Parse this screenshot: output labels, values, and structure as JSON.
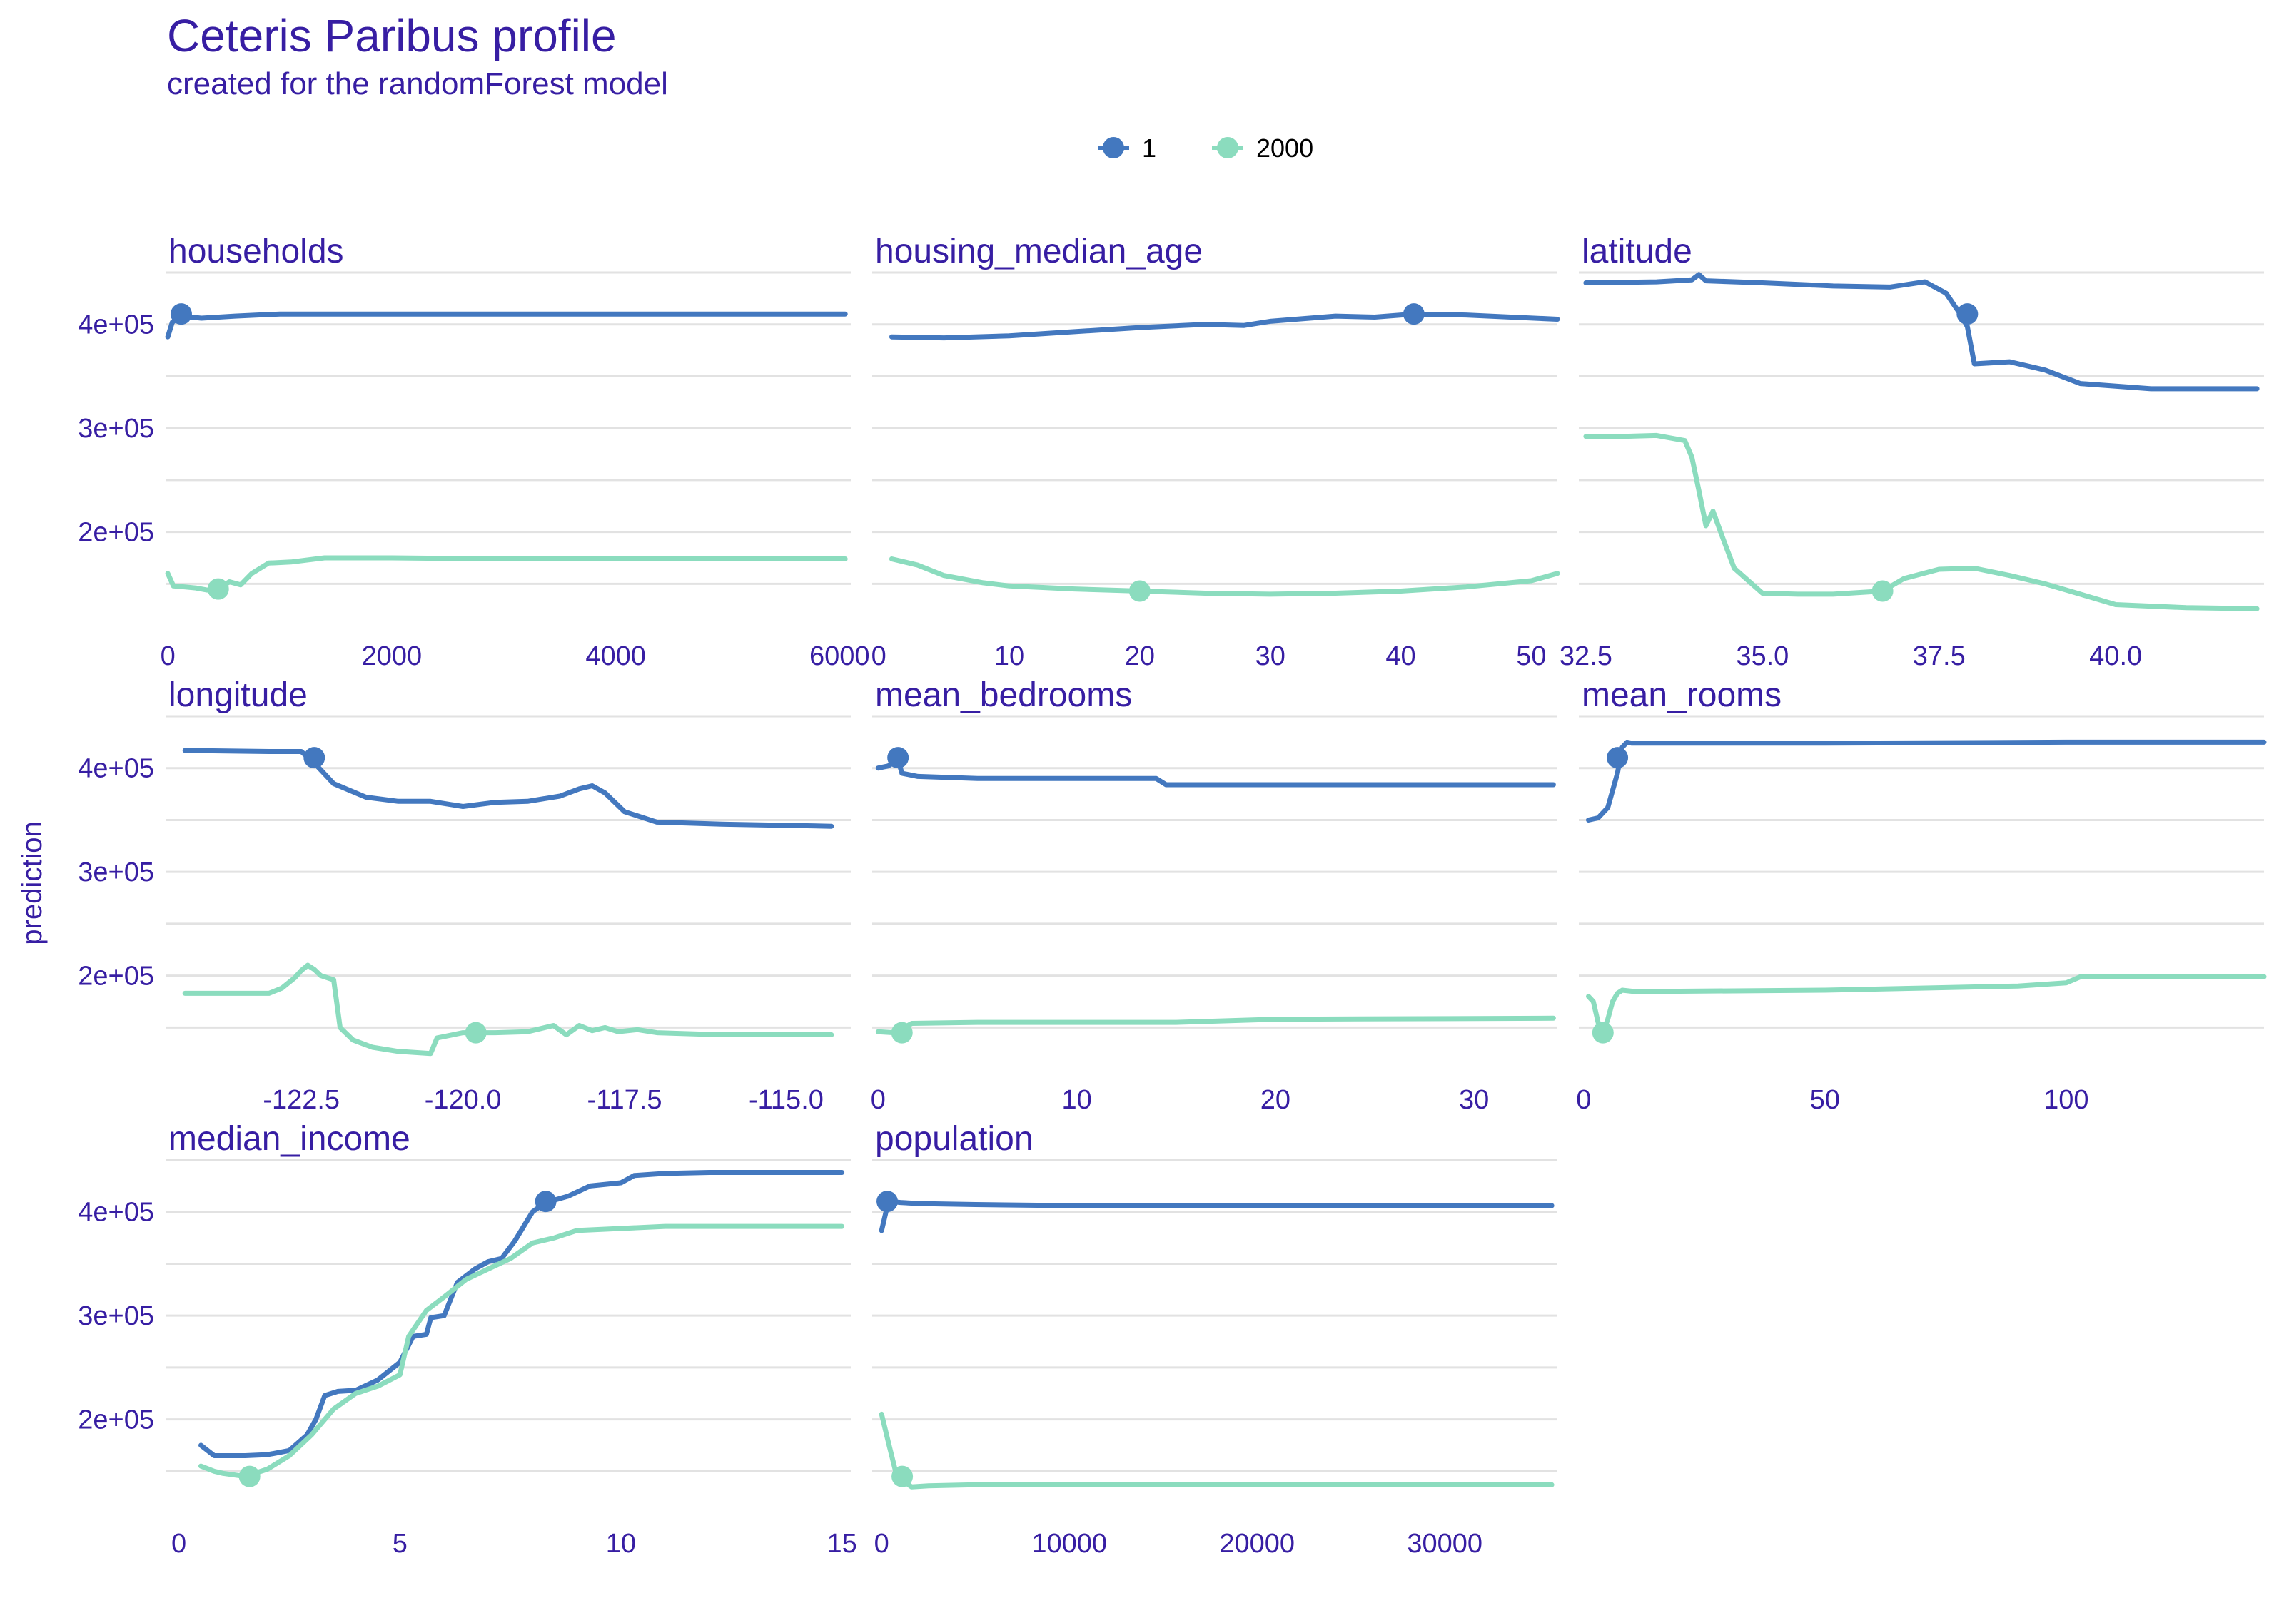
{
  "title": "Ceteris Paribus profile",
  "subtitle": "created for the randomForest model",
  "colors": {
    "text": "#371ea3",
    "grid": "#e2e2e2",
    "series_1": "#4378bf",
    "series_2000": "#8bdcbe"
  },
  "chart_data": {
    "type": "line",
    "ylabel": "prediction",
    "shared_y": {
      "ylim": [
        120000,
        450000
      ],
      "ticks": [
        200000,
        300000,
        400000
      ],
      "tick_labels": [
        "2e+05",
        "3e+05",
        "4e+05"
      ],
      "grid": true
    },
    "legend": {
      "placement": "top-center",
      "entries": [
        "1",
        "2000"
      ]
    },
    "panels": [
      {
        "name": "households",
        "xlim": [
          -20,
          6100
        ],
        "xticks": [
          0,
          2000,
          4000,
          6000
        ],
        "xtick_labels": [
          "0",
          "2000",
          "4000",
          "6000"
        ],
        "series": [
          {
            "name": "1",
            "x": [
              0,
              40,
              120,
              300,
              600,
              1000,
              1500,
              2500,
              4000,
              6050
            ],
            "y": [
              388000,
              402000,
              408000,
              406000,
              408000,
              410000,
              410000,
              410000,
              410000,
              410000
            ],
            "obs": [
              120,
              410000
            ]
          },
          {
            "name": "2000",
            "x": [
              0,
              50,
              150,
              250,
              350,
              450,
              550,
              650,
              750,
              900,
              1100,
              1400,
              2000,
              3000,
              4500,
              6050
            ],
            "y": [
              160000,
              148000,
              147000,
              146000,
              144000,
              145000,
              152000,
              149000,
              160000,
              170000,
              171000,
              175000,
              175000,
              174000,
              174000,
              174000
            ],
            "obs": [
              450,
              145000
            ]
          }
        ]
      },
      {
        "name": "housing_median_age",
        "xlim": [
          -0.5,
          52
        ],
        "xticks": [
          0,
          10,
          20,
          30,
          40,
          50
        ],
        "xtick_labels": [
          "0",
          "10",
          "20",
          "30",
          "40",
          "50"
        ],
        "series": [
          {
            "name": "1",
            "x": [
              1,
              5,
              10,
              15,
              20,
              25,
              28,
              30,
              35,
              38,
              41,
              45,
              52
            ],
            "y": [
              388000,
              387000,
              389000,
              393000,
              397000,
              400000,
              399000,
              403000,
              408000,
              407000,
              410000,
              409000,
              405000
            ],
            "obs": [
              41,
              410000
            ]
          },
          {
            "name": "2000",
            "x": [
              1,
              3,
              5,
              8,
              10,
              15,
              20,
              25,
              30,
              35,
              40,
              45,
              50,
              52
            ],
            "y": [
              174000,
              168000,
              158000,
              151000,
              148000,
              145000,
              143000,
              141000,
              140000,
              141000,
              143000,
              147000,
              153000,
              160000
            ],
            "obs": [
              20,
              143000
            ]
          }
        ]
      },
      {
        "name": "latitude",
        "xlim": [
          32.4,
          42.1
        ],
        "xticks": [
          32.5,
          35.0,
          37.5,
          40.0
        ],
        "xtick_labels": [
          "32.5",
          "35.0",
          "37.5",
          "40.0"
        ],
        "series": [
          {
            "name": "1",
            "x": [
              32.5,
              33.5,
              34.0,
              34.1,
              34.2,
              35.0,
              36.0,
              36.8,
              37.3,
              37.6,
              37.8,
              37.9,
              38.0,
              38.5,
              39.0,
              39.5,
              40.5,
              42.0
            ],
            "y": [
              440000,
              441000,
              443000,
              448000,
              442000,
              440000,
              437000,
              436000,
              441000,
              430000,
              410000,
              398000,
              362000,
              364000,
              356000,
              343000,
              338000,
              338000
            ],
            "obs": [
              37.9,
              410000
            ]
          },
          {
            "name": "2000",
            "x": [
              32.5,
              33.0,
              33.5,
              33.9,
              34.0,
              34.1,
              34.2,
              34.3,
              34.45,
              34.6,
              35.0,
              35.5,
              36.0,
              36.7,
              37.0,
              37.5,
              38.0,
              38.5,
              39.0,
              39.5,
              40.0,
              41.0,
              42.0
            ],
            "y": [
              292000,
              292000,
              293000,
              288000,
              272000,
              240000,
              206000,
              220000,
              192000,
              165000,
              141000,
              140000,
              140000,
              143000,
              155000,
              164000,
              165000,
              158000,
              150000,
              140000,
              130000,
              127000,
              126000
            ],
            "obs": [
              36.7,
              143000
            ]
          }
        ]
      },
      {
        "name": "longitude",
        "xlim": [
          -124.6,
          -114.0
        ],
        "xticks": [
          -122.5,
          -120.0,
          -117.5,
          -115.0
        ],
        "xtick_labels": [
          "-122.5",
          "-120.0",
          "-117.5",
          "-115.0"
        ],
        "series": [
          {
            "name": "1",
            "x": [
              -124.3,
              -123.0,
              -122.5,
              -122.3,
              -122.0,
              -121.5,
              -121.0,
              -120.5,
              -120.0,
              -119.5,
              -119.0,
              -118.5,
              -118.2,
              -118.0,
              -117.8,
              -117.5,
              -117.0,
              -116.0,
              -114.3
            ],
            "y": [
              417000,
              416000,
              416000,
              405000,
              385000,
              372000,
              368000,
              368000,
              363000,
              367000,
              368000,
              373000,
              380000,
              383000,
              376000,
              358000,
              348000,
              346000,
              344000
            ],
            "obs": [
              -122.3,
              410000
            ]
          },
          {
            "name": "2000",
            "x": [
              -124.3,
              -123.0,
              -122.8,
              -122.6,
              -122.5,
              -122.4,
              -122.3,
              -122.2,
              -122.0,
              -121.9,
              -121.7,
              -121.4,
              -121.0,
              -120.5,
              -120.4,
              -120.0,
              -119.5,
              -119.0,
              -118.6,
              -118.4,
              -118.2,
              -118.0,
              -117.8,
              -117.6,
              -117.3,
              -117.0,
              -116.0,
              -114.3
            ],
            "y": [
              183000,
              183000,
              188000,
              198000,
              205000,
              210000,
              206000,
              200000,
              196000,
              150000,
              138000,
              131000,
              127000,
              125000,
              140000,
              145000,
              145000,
              146000,
              152000,
              143000,
              152000,
              147000,
              150000,
              146000,
              148000,
              145000,
              143000,
              143000
            ],
            "obs": [
              -119.8,
              145000
            ]
          }
        ]
      },
      {
        "name": "mean_bedrooms",
        "xlim": [
          -0.3,
          34.2
        ],
        "xticks": [
          0,
          10,
          20,
          30
        ],
        "xtick_labels": [
          "0",
          "10",
          "20",
          "30"
        ],
        "series": [
          {
            "name": "1",
            "x": [
              0,
              0.5,
              1.0,
              1.2,
              2,
              5,
              10,
              14,
              14.5,
              20,
              34
            ],
            "y": [
              400000,
              402000,
              408000,
              395000,
              392000,
              390000,
              390000,
              390000,
              384000,
              384000,
              384000
            ],
            "obs": [
              1.0,
              410000
            ]
          },
          {
            "name": "2000",
            "x": [
              0,
              0.8,
              1.3,
              1.7,
              5,
              10,
              15,
              20,
              34
            ],
            "y": [
              146000,
              145000,
              150000,
              154000,
              155000,
              155000,
              155000,
              158000,
              159000
            ],
            "obs": [
              1.2,
              145000
            ]
          }
        ]
      },
      {
        "name": "mean_rooms",
        "xlim": [
          -1,
          141
        ],
        "xticks": [
          0,
          50,
          100
        ],
        "xtick_labels": [
          "0",
          "50",
          "100"
        ],
        "series": [
          {
            "name": "1",
            "x": [
              1,
              3,
              5,
              7,
              8,
              9,
              10,
              20,
              50,
              100,
              141
            ],
            "y": [
              350000,
              352000,
              362000,
              395000,
              420000,
              425000,
              424000,
              424000,
              424000,
              425000,
              425000
            ],
            "obs": [
              7,
              410000
            ]
          },
          {
            "name": "2000",
            "x": [
              1,
              2,
              3,
              4,
              5,
              6,
              7,
              8,
              10,
              20,
              50,
              70,
              90,
              100,
              103,
              141
            ],
            "y": [
              180000,
              175000,
              155000,
              145000,
              158000,
              175000,
              183000,
              186000,
              185000,
              185000,
              186000,
              188000,
              190000,
              193000,
              199000,
              199000
            ],
            "obs": [
              4,
              145000
            ]
          }
        ]
      },
      {
        "name": "median_income",
        "xlim": [
          -0.3,
          15.2
        ],
        "xticks": [
          0,
          5,
          10,
          15
        ],
        "xtick_labels": [
          "0",
          "5",
          "10",
          "15"
        ],
        "series": [
          {
            "name": "1",
            "x": [
              0.5,
              0.8,
              1.5,
              2.0,
              2.5,
              2.9,
              3.1,
              3.3,
              3.6,
              4.0,
              4.5,
              5.0,
              5.3,
              5.6,
              5.7,
              6.0,
              6.3,
              6.7,
              7.0,
              7.3,
              7.6,
              8.0,
              8.3,
              8.8,
              9.3,
              10.0,
              10.3,
              11.0,
              12.0,
              15.0
            ],
            "y": [
              175000,
              165000,
              165000,
              166000,
              170000,
              185000,
              200000,
              223000,
              227000,
              228000,
              238000,
              255000,
              280000,
              282000,
              298000,
              300000,
              332000,
              345000,
              352000,
              355000,
              372000,
              400000,
              409000,
              415000,
              425000,
              428000,
              435000,
              437000,
              438000,
              438000
            ],
            "obs": [
              8.3,
              410000
            ]
          },
          {
            "name": "2000",
            "x": [
              0.5,
              0.8,
              1.0,
              1.5,
              2.0,
              2.5,
              3.0,
              3.5,
              4.0,
              4.5,
              5.0,
              5.2,
              5.6,
              6.0,
              6.5,
              7.0,
              7.5,
              8.0,
              8.5,
              9.0,
              10.0,
              11.0,
              12.0,
              15.0
            ],
            "y": [
              155000,
              150000,
              148000,
              145000,
              152000,
              165000,
              185000,
              210000,
              225000,
              232000,
              243000,
              280000,
              305000,
              318000,
              335000,
              345000,
              355000,
              370000,
              375000,
              382000,
              384000,
              386000,
              386000,
              386000
            ],
            "obs": [
              1.6,
              145000
            ]
          }
        ]
      },
      {
        "name": "population",
        "xlim": [
          -500,
          36000
        ],
        "xticks": [
          0,
          10000,
          20000,
          30000
        ],
        "xtick_labels": [
          "0",
          "10000",
          "20000",
          "30000"
        ],
        "series": [
          {
            "name": "1",
            "x": [
              0,
              300,
              500,
              1000,
              2000,
              5000,
              10000,
              20000,
              35700
            ],
            "y": [
              382000,
              405000,
              410000,
              409000,
              408000,
              407000,
              406000,
              406000,
              406000
            ],
            "obs": [
              300,
              410000
            ]
          },
          {
            "name": "2000",
            "x": [
              0,
              400,
              800,
              1200,
              1600,
              2500,
              5000,
              10000,
              35700
            ],
            "y": [
              205000,
              175000,
              146000,
              140000,
              135000,
              136000,
              137000,
              137000,
              137000
            ],
            "obs": [
              1100,
              145000
            ]
          }
        ]
      }
    ]
  }
}
